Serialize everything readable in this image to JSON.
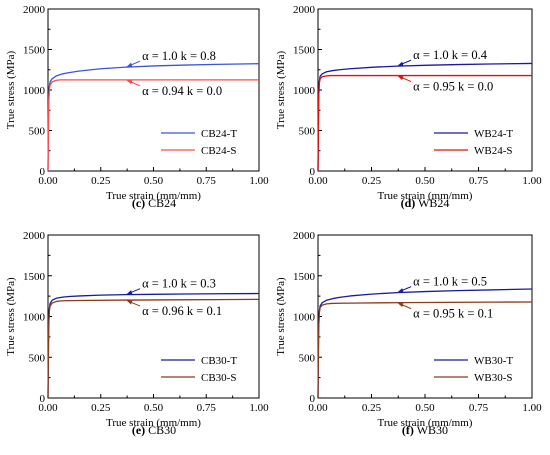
{
  "chart_data": [
    {
      "type": "line",
      "caption_letter": "(c)",
      "caption_name": "CB24",
      "xlabel": "True strain (mm/mm)",
      "ylabel": "True stress (MPa)",
      "xlim": [
        0,
        1
      ],
      "ylim": [
        0,
        2000
      ],
      "xticks": [
        "0.00",
        "0.25",
        "0.50",
        "0.75",
        "1.00"
      ],
      "yticks": [
        "0",
        "500",
        "1000",
        "1500",
        "2000"
      ],
      "legend_position": "lower-right",
      "series": [
        {
          "name": "CB24-T",
          "color": "#3a55d8",
          "x": [
            0,
            0.003,
            0.006,
            0.01,
            0.02,
            0.04,
            0.07,
            0.1,
            0.15,
            0.25,
            0.37,
            0.5,
            0.65,
            0.8,
            1.0
          ],
          "y": [
            0,
            850,
            1040,
            1100,
            1140,
            1175,
            1200,
            1215,
            1235,
            1262,
            1282,
            1297,
            1308,
            1316,
            1325
          ]
        },
        {
          "name": "CB24-S",
          "color": "#ff4b4b",
          "x": [
            0,
            0.003,
            0.006,
            0.01,
            0.02,
            0.04,
            0.06,
            0.1,
            0.2,
            0.4,
            0.6,
            0.8,
            1.0
          ],
          "y": [
            0,
            820,
            1000,
            1060,
            1100,
            1120,
            1125,
            1125,
            1125,
            1125,
            1125,
            1125,
            1125
          ]
        }
      ],
      "annotations": [
        {
          "text": "α = 1.0 k = 0.8",
          "x": 0.37,
          "y": 1282
        },
        {
          "text": "α = 0.94 k = 0.0",
          "x": 0.37,
          "y": 1125
        }
      ]
    },
    {
      "type": "line",
      "caption_letter": "(d)",
      "caption_name": "WB24",
      "xlabel": "True strain (mm/mm)",
      "ylabel": "True stress (MPa)",
      "xlim": [
        0,
        1
      ],
      "ylim": [
        0,
        2000
      ],
      "xticks": [
        "0.00",
        "0.25",
        "0.50",
        "0.75",
        "1.00"
      ],
      "yticks": [
        "0",
        "500",
        "1000",
        "1500",
        "2000"
      ],
      "legend_position": "lower-right",
      "series": [
        {
          "name": "WB24-T",
          "color": "#1a1aa0",
          "x": [
            0,
            0.003,
            0.006,
            0.01,
            0.02,
            0.04,
            0.07,
            0.1,
            0.15,
            0.25,
            0.37,
            0.5,
            0.65,
            0.8,
            1.0
          ],
          "y": [
            0,
            900,
            1100,
            1170,
            1200,
            1225,
            1240,
            1250,
            1262,
            1280,
            1295,
            1305,
            1314,
            1321,
            1328
          ]
        },
        {
          "name": "WB24-S",
          "color": "#e01010",
          "x": [
            0,
            0.003,
            0.006,
            0.01,
            0.02,
            0.04,
            0.06,
            0.1,
            0.2,
            0.4,
            0.6,
            0.8,
            1.0
          ],
          "y": [
            0,
            880,
            1080,
            1140,
            1165,
            1175,
            1178,
            1178,
            1178,
            1178,
            1178,
            1178,
            1178
          ]
        }
      ],
      "annotations": [
        {
          "text": "α = 1.0 k = 0.4",
          "x": 0.37,
          "y": 1295
        },
        {
          "text": "α = 0.95 k = 0.0",
          "x": 0.37,
          "y": 1178
        }
      ]
    },
    {
      "type": "line",
      "caption_letter": "(e)",
      "caption_name": "CB30",
      "xlabel": "True strain (mm/mm)",
      "ylabel": "True stress (MPa)",
      "xlim": [
        0,
        1
      ],
      "ylim": [
        0,
        2000
      ],
      "xticks": [
        "0.00",
        "0.25",
        "0.50",
        "0.75",
        "1.00"
      ],
      "yticks": [
        "0",
        "500",
        "1000",
        "1500",
        "2000"
      ],
      "legend_position": "lower-right",
      "series": [
        {
          "name": "CB30-T",
          "color": "#1a1aa0",
          "x": [
            0,
            0.003,
            0.006,
            0.01,
            0.02,
            0.04,
            0.07,
            0.1,
            0.15,
            0.25,
            0.37,
            0.5,
            0.65,
            0.8,
            1.0
          ],
          "y": [
            0,
            880,
            1090,
            1160,
            1200,
            1225,
            1238,
            1245,
            1252,
            1262,
            1268,
            1272,
            1276,
            1279,
            1282
          ]
        },
        {
          "name": "CB30-S",
          "color": "#8b3a1a",
          "x": [
            0,
            0.003,
            0.006,
            0.01,
            0.02,
            0.04,
            0.06,
            0.1,
            0.2,
            0.4,
            0.6,
            0.8,
            1.0
          ],
          "y": [
            0,
            860,
            1060,
            1130,
            1165,
            1185,
            1192,
            1195,
            1198,
            1202,
            1205,
            1207,
            1210
          ]
        }
      ],
      "annotations": [
        {
          "text": "α = 1.0 k = 0.3",
          "x": 0.37,
          "y": 1268
        },
        {
          "text": "α = 0.96 k = 0.1",
          "x": 0.37,
          "y": 1202
        }
      ]
    },
    {
      "type": "line",
      "caption_letter": "(f)",
      "caption_name": "WB30",
      "xlabel": "True strain (mm/mm)",
      "ylabel": "True stress (MPa)",
      "xlim": [
        0,
        1
      ],
      "ylim": [
        0,
        2000
      ],
      "xticks": [
        "0.00",
        "0.25",
        "0.50",
        "0.75",
        "1.00"
      ],
      "yticks": [
        "0",
        "500",
        "1000",
        "1500",
        "2000"
      ],
      "legend_position": "lower-right",
      "series": [
        {
          "name": "WB30-T",
          "color": "#1a1aa0",
          "x": [
            0,
            0.003,
            0.006,
            0.01,
            0.02,
            0.04,
            0.07,
            0.1,
            0.15,
            0.25,
            0.37,
            0.5,
            0.65,
            0.8,
            1.0
          ],
          "y": [
            0,
            860,
            1060,
            1130,
            1170,
            1200,
            1220,
            1235,
            1252,
            1275,
            1293,
            1306,
            1317,
            1326,
            1337
          ]
        },
        {
          "name": "WB30-S",
          "color": "#8b3a1a",
          "x": [
            0,
            0.003,
            0.006,
            0.01,
            0.02,
            0.04,
            0.06,
            0.1,
            0.2,
            0.4,
            0.6,
            0.8,
            1.0
          ],
          "y": [
            0,
            840,
            1040,
            1110,
            1140,
            1155,
            1160,
            1163,
            1166,
            1170,
            1173,
            1176,
            1178
          ]
        }
      ],
      "annotations": [
        {
          "text": "α = 1.0 k = 0.5",
          "x": 0.37,
          "y": 1293
        },
        {
          "text": "α = 0.95 k = 0.1",
          "x": 0.37,
          "y": 1170
        }
      ]
    }
  ]
}
